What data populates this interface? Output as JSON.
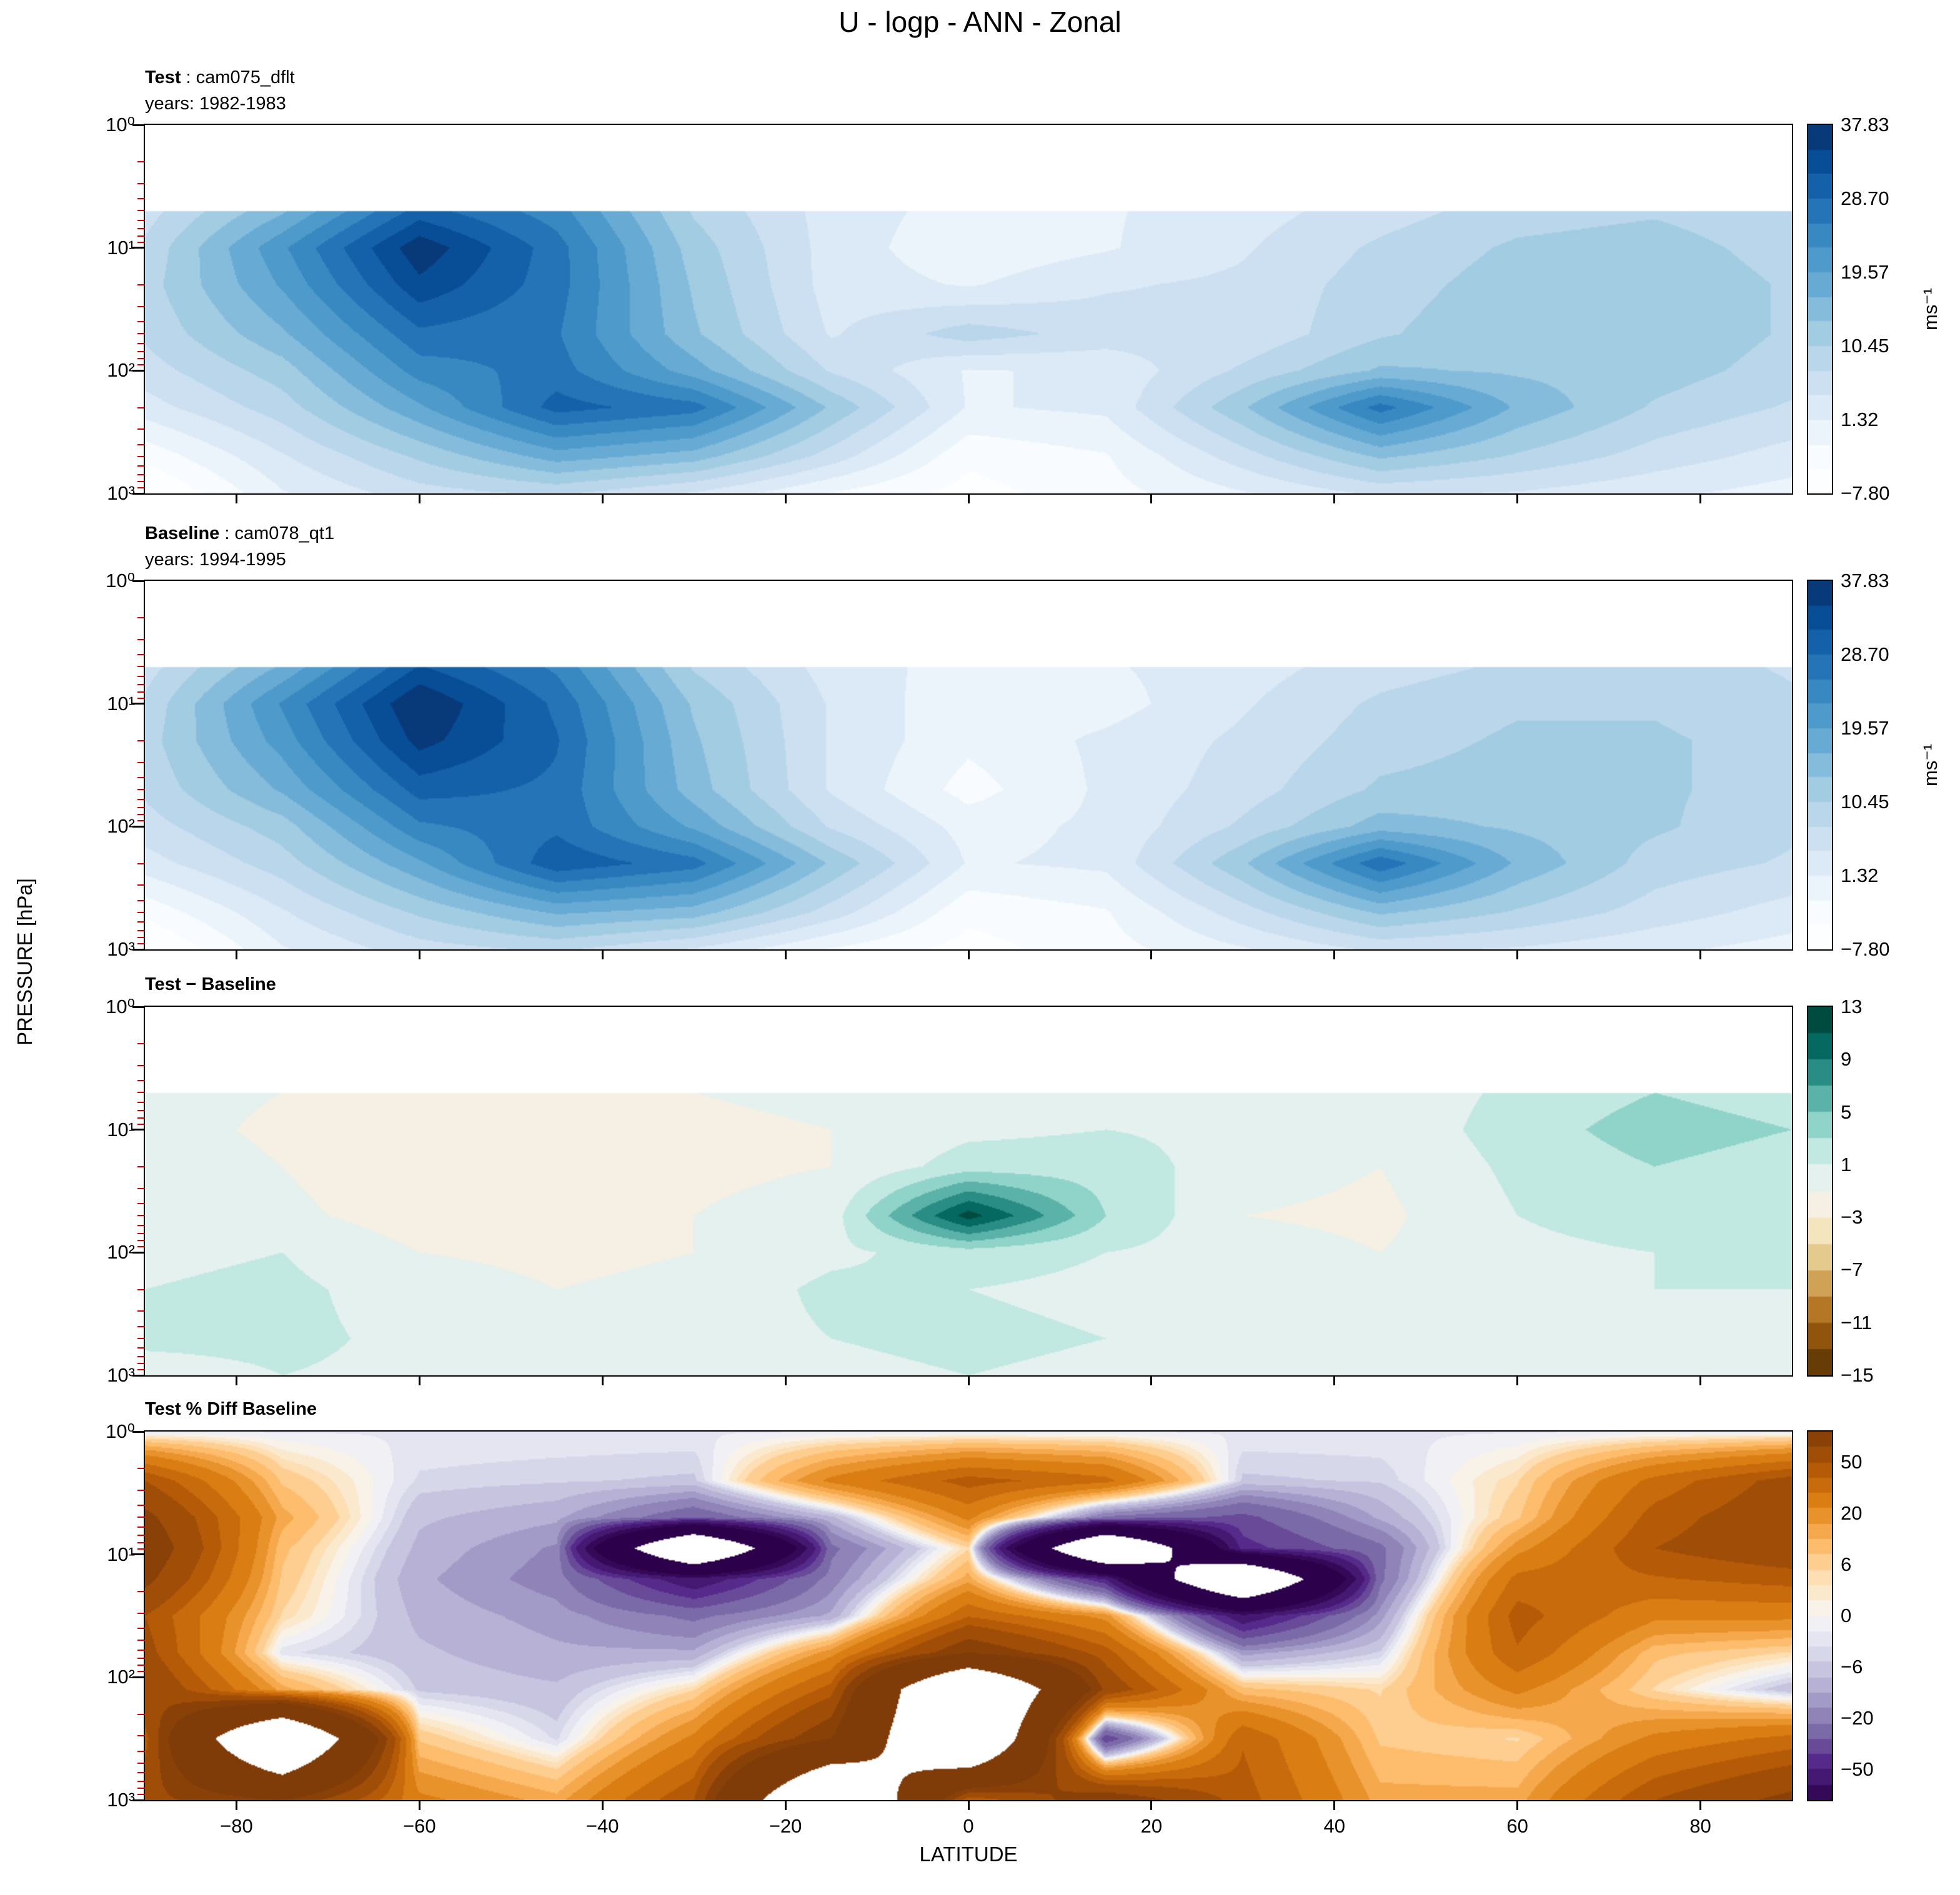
{
  "figure": {
    "title": "U - logp - ANN - Zonal",
    "xlabel": "LATITUDE",
    "ylabel": "PRESSURE [hPa]",
    "x_tick_values": [
      -80,
      -60,
      -40,
      -20,
      0,
      20,
      40,
      60,
      80
    ],
    "x_tick_labels": [
      "−80",
      "−60",
      "−40",
      "−20",
      "0",
      "20",
      "40",
      "60",
      "80"
    ],
    "y_tick_labels": [
      "10⁰",
      "10¹",
      "10²",
      "10³"
    ],
    "minor_tick_color": "#d40000",
    "axis_color": "#000000",
    "background": "#ffffff"
  },
  "chart_data": [
    {
      "type": "heatmap",
      "heading_bold": "Test",
      "heading_rest": " : cam075_dflt",
      "heading_line2": "years: 1982-1983",
      "colorbar": {
        "ticks": [
          "37.83",
          "28.70",
          "19.57",
          "10.45",
          "1.32",
          "−7.80"
        ],
        "units": "ms⁻¹"
      },
      "scale": "linear",
      "vmin": -7.8,
      "vmax": 37.83,
      "nbands": 15,
      "under": "white",
      "anchors": [
        "#ffffff",
        "#f7fbff",
        "#deebf7",
        "#c6dbef",
        "#9ecae1",
        "#6baed6",
        "#4292c6",
        "#2171b5",
        "#08519c",
        "#08306b"
      ],
      "mask_above_logp": 0.7,
      "lat": [
        -90,
        -75,
        -60,
        -45,
        -30,
        -15,
        0,
        15,
        30,
        45,
        60,
        75,
        90
      ],
      "logp": [
        0.7,
        1.0,
        1.3,
        1.7,
        2.0,
        2.3,
        2.7,
        3.0
      ],
      "values": [
        [
          6,
          16,
          30,
          24,
          10,
          3,
          0,
          1,
          3,
          6,
          9,
          10,
          8
        ],
        [
          8,
          22,
          37,
          27,
          12,
          3,
          -1,
          1,
          4,
          8,
          11,
          12,
          9
        ],
        [
          9,
          20,
          34,
          27,
          13,
          3,
          1,
          4,
          5,
          9,
          12,
          13,
          10
        ],
        [
          8,
          16,
          28,
          26,
          14,
          4,
          9,
          6,
          5,
          10,
          13,
          13,
          10
        ],
        [
          6,
          12,
          24,
          27,
          18,
          7,
          1,
          2,
          8,
          14,
          13,
          12,
          9
        ],
        [
          3,
          9,
          19,
          30,
          27,
          13,
          1,
          2,
          13,
          27,
          16,
          10,
          7
        ],
        [
          -4,
          4,
          11,
          18,
          15,
          6,
          -4,
          -2,
          6,
          14,
          10,
          6,
          3
        ],
        [
          -9,
          1,
          6,
          8,
          4,
          -2,
          -6,
          -3,
          1,
          5,
          4,
          2,
          0
        ]
      ]
    },
    {
      "type": "heatmap",
      "heading_bold": "Baseline",
      "heading_rest": " : cam078_qt1",
      "heading_line2": "years: 1994-1995",
      "colorbar": {
        "ticks": [
          "37.83",
          "28.70",
          "19.57",
          "10.45",
          "1.32",
          "−7.80"
        ],
        "units": "ms⁻¹"
      },
      "scale": "linear",
      "vmin": -7.8,
      "vmax": 37.83,
      "nbands": 15,
      "under": "white",
      "anchors": [
        "#ffffff",
        "#f7fbff",
        "#deebf7",
        "#c6dbef",
        "#9ecae1",
        "#6baed6",
        "#4292c6",
        "#2171b5",
        "#08519c",
        "#08306b"
      ],
      "mask_above_logp": 0.7,
      "lat": [
        -90,
        -75,
        -60,
        -45,
        -30,
        -15,
        0,
        15,
        30,
        45,
        60,
        75,
        90
      ],
      "logp": [
        0.7,
        1.0,
        1.3,
        1.7,
        2.0,
        2.3,
        2.7,
        3.0
      ],
      "values": [
        [
          6,
          17,
          32,
          25,
          10,
          3,
          0,
          1,
          3,
          6,
          8,
          9,
          7
        ],
        [
          8,
          23,
          38,
          28,
          13,
          4,
          -1,
          0,
          4,
          8,
          10,
          10,
          8
        ],
        [
          9,
          21,
          36,
          29,
          14,
          4,
          -1,
          2,
          5,
          9,
          11,
          11,
          9
        ],
        [
          8,
          17,
          30,
          28,
          15,
          4,
          -3,
          2,
          6,
          11,
          12,
          11,
          9
        ],
        [
          6,
          12,
          25,
          28,
          19,
          7,
          0,
          2,
          8,
          15,
          13,
          11,
          8
        ],
        [
          3,
          9,
          19,
          31,
          27,
          13,
          1,
          2,
          13,
          28,
          16,
          9,
          7
        ],
        [
          -4,
          4,
          11,
          17,
          15,
          6,
          -4,
          -2,
          6,
          14,
          10,
          6,
          3
        ],
        [
          -9,
          1,
          6,
          8,
          4,
          -2,
          -6,
          -3,
          1,
          5,
          4,
          2,
          0
        ]
      ]
    },
    {
      "type": "heatmap",
      "heading_bold": "Test − Baseline",
      "heading_rest": "",
      "heading_line2": "",
      "colorbar": {
        "ticks": [
          "13",
          "9",
          "5",
          "1",
          "−3",
          "−7",
          "−11",
          "−15"
        ],
        "units": ""
      },
      "scale": "linear",
      "vmin": -15,
      "vmax": 13,
      "nbands": 14,
      "under": "clamp",
      "anchors": [
        "#543005",
        "#8c510a",
        "#bf812d",
        "#dfc27d",
        "#f6e8c3",
        "#f5f5f5",
        "#c7eae5",
        "#80cdc1",
        "#35978f",
        "#01665e",
        "#003c30"
      ],
      "mask_above_logp": 0.7,
      "lat": [
        -90,
        -75,
        -60,
        -45,
        -30,
        -15,
        0,
        15,
        30,
        45,
        60,
        75,
        90
      ],
      "logp": [
        0.7,
        1.0,
        1.3,
        1.7,
        2.0,
        2.3,
        2.7,
        3.0
      ],
      "values": [
        [
          0,
          -1,
          -2,
          -1.5,
          -1,
          -0.5,
          0.5,
          0.5,
          0,
          -0.5,
          1.5,
          3,
          2
        ],
        [
          0,
          -1.5,
          -2.5,
          -2,
          -1.5,
          -1,
          0.5,
          1,
          0.5,
          -0.5,
          2,
          4,
          3
        ],
        [
          0.5,
          -1,
          -2.5,
          -2,
          -1.5,
          -1,
          2,
          2,
          0,
          -1,
          1.5,
          3,
          2
        ],
        [
          0.5,
          -0.5,
          -2,
          -2,
          -1,
          0,
          12,
          3,
          -1,
          -1.5,
          1,
          2,
          1.5
        ],
        [
          0.5,
          1,
          -1,
          -1.5,
          -1,
          0.5,
          2,
          1,
          0,
          -1,
          0.5,
          1,
          1
        ],
        [
          1,
          1.5,
          0,
          -1,
          -0.5,
          1.5,
          1,
          0.5,
          0.5,
          -1,
          0.5,
          1,
          1
        ],
        [
          1.5,
          1.5,
          0.5,
          0,
          0,
          1,
          1.5,
          1,
          0.5,
          0,
          0,
          0.5,
          1
        ],
        [
          0,
          1,
          0.5,
          0,
          0,
          0.5,
          1,
          0.5,
          0,
          0,
          0,
          0.5,
          1
        ]
      ]
    },
    {
      "type": "heatmap",
      "heading_bold": "Test % Diff Baseline",
      "heading_rest": "",
      "heading_line2": "",
      "colorbar": {
        "ticks": [
          "50",
          "20",
          "6",
          "0",
          "−6",
          "−20",
          "−50"
        ],
        "units": ""
      },
      "scale": "symlog",
      "percent_breaks": [
        0,
        6,
        20,
        50,
        100
      ],
      "s_range": 3.6,
      "band_step": 0.3,
      "mask_abs": 150,
      "anchors": [
        "#2d004b",
        "#542788",
        "#8073ac",
        "#b2abd2",
        "#d8daeb",
        "#f7f7f7",
        "#fee0b6",
        "#fdb863",
        "#e08214",
        "#b35806",
        "#7f3b08"
      ],
      "mask_above_logp": null,
      "lat": [
        -90,
        -75,
        -60,
        -45,
        -30,
        -15,
        0,
        15,
        30,
        45,
        60,
        75,
        90
      ],
      "logp": [
        0.0,
        0.4,
        0.7,
        0.95,
        1.2,
        1.5,
        1.8,
        2.1,
        2.5,
        3.0
      ],
      "values": [
        [
          -2,
          -2,
          -2,
          -2,
          -2,
          -2,
          -2,
          -2,
          -2,
          -2,
          -2,
          -2,
          -2
        ],
        [
          50,
          8,
          -4,
          -5,
          -6,
          25,
          45,
          35,
          -6,
          -5,
          5,
          35,
          55
        ],
        [
          70,
          15,
          -8,
          -12,
          -30,
          -10,
          25,
          -25,
          -35,
          -12,
          8,
          45,
          60
        ],
        [
          80,
          10,
          -10,
          -18,
          -250,
          -25,
          5,
          -250,
          -45,
          -25,
          20,
          50,
          60
        ],
        [
          70,
          8,
          -12,
          -20,
          -60,
          -20,
          15,
          -50,
          -250,
          -25,
          35,
          40,
          45
        ],
        [
          50,
          5,
          -10,
          -15,
          -25,
          -12,
          40,
          20,
          -60,
          -15,
          45,
          25,
          25
        ],
        [
          55,
          -3,
          -8,
          -12,
          -12,
          20,
          80,
          45,
          -15,
          -5,
          40,
          10,
          5
        ],
        [
          65,
          15,
          -6,
          -8,
          5,
          45,
          250,
          60,
          10,
          5,
          25,
          5,
          -8
        ],
        [
          45,
          250,
          8,
          -4,
          25,
          80,
          250,
          -40,
          40,
          8,
          5,
          25,
          35
        ],
        [
          60,
          80,
          25,
          15,
          50,
          250,
          40,
          80,
          45,
          15,
          15,
          50,
          70
        ]
      ]
    }
  ]
}
